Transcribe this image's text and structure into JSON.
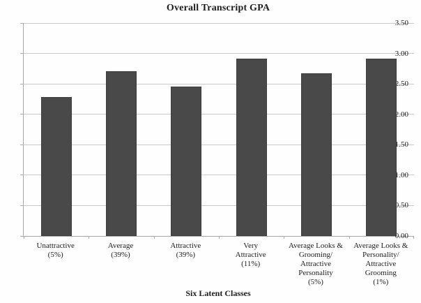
{
  "chart_data": {
    "type": "bar",
    "title": "Overall Transcript GPA",
    "xlabel": "Six Latent Classes",
    "ylabel": "",
    "categories": [
      [
        "Unattractive",
        "(5%)"
      ],
      [
        "Average",
        "(39%)"
      ],
      [
        "Attractive",
        "(39%)"
      ],
      [
        "Very",
        "Attractive",
        "(11%)"
      ],
      [
        "Average Looks &",
        "Grooming/",
        "Attractive",
        "Personality",
        "(5%)"
      ],
      [
        "Average Looks &",
        "Personality/",
        "Attractive Grooming",
        "(1%)"
      ]
    ],
    "values": [
      2.28,
      2.71,
      2.46,
      2.92,
      2.67,
      2.92
    ],
    "ylim": [
      0,
      3.5
    ],
    "ytick_step": 0.5,
    "ytick_labels": [
      "0.00",
      "0.50",
      "1.00",
      "1.50",
      "2.00",
      "2.50",
      "3.00",
      "3.50"
    ],
    "grid": true,
    "legend": "none",
    "bar_color": "#494949",
    "gridline_color": "#c9c9c9",
    "axis_color": "#a8a8a8",
    "text_color": "#1c1c1c"
  }
}
